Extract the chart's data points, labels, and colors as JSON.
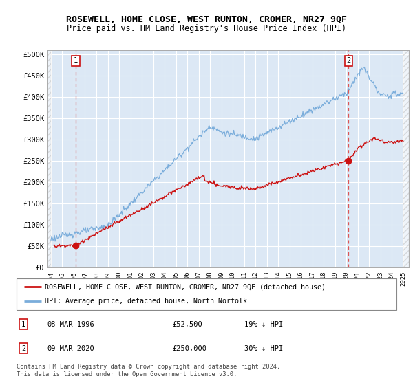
{
  "title": "ROSEWELL, HOME CLOSE, WEST RUNTON, CROMER, NR27 9QF",
  "subtitle": "Price paid vs. HM Land Registry's House Price Index (HPI)",
  "ylim": [
    0,
    510000
  ],
  "yticks": [
    0,
    50000,
    100000,
    150000,
    200000,
    250000,
    300000,
    350000,
    400000,
    450000,
    500000
  ],
  "ytick_labels": [
    "£0",
    "£50K",
    "£100K",
    "£150K",
    "£200K",
    "£250K",
    "£300K",
    "£350K",
    "£400K",
    "£450K",
    "£500K"
  ],
  "xlim_start": 1993.7,
  "xlim_end": 2025.5,
  "hatch_end": 2025.0,
  "hpi_color": "#7aaddb",
  "price_color": "#cc1111",
  "marker_color": "#cc1111",
  "background_plot": "#dce8f5",
  "grid_color": "#ffffff",
  "dashed_line_color": "#dd5555",
  "sale1_year": 1996.19,
  "sale1_price": 52500,
  "sale2_year": 2020.19,
  "sale2_price": 250000,
  "legend_line1": "ROSEWELL, HOME CLOSE, WEST RUNTON, CROMER, NR27 9QF (detached house)",
  "legend_line2": "HPI: Average price, detached house, North Norfolk",
  "table_row1": [
    "1",
    "08-MAR-1996",
    "£52,500",
    "19% ↓ HPI"
  ],
  "table_row2": [
    "2",
    "09-MAR-2020",
    "£250,000",
    "30% ↓ HPI"
  ],
  "footnote": "Contains HM Land Registry data © Crown copyright and database right 2024.\nThis data is licensed under the Open Government Licence v3.0."
}
